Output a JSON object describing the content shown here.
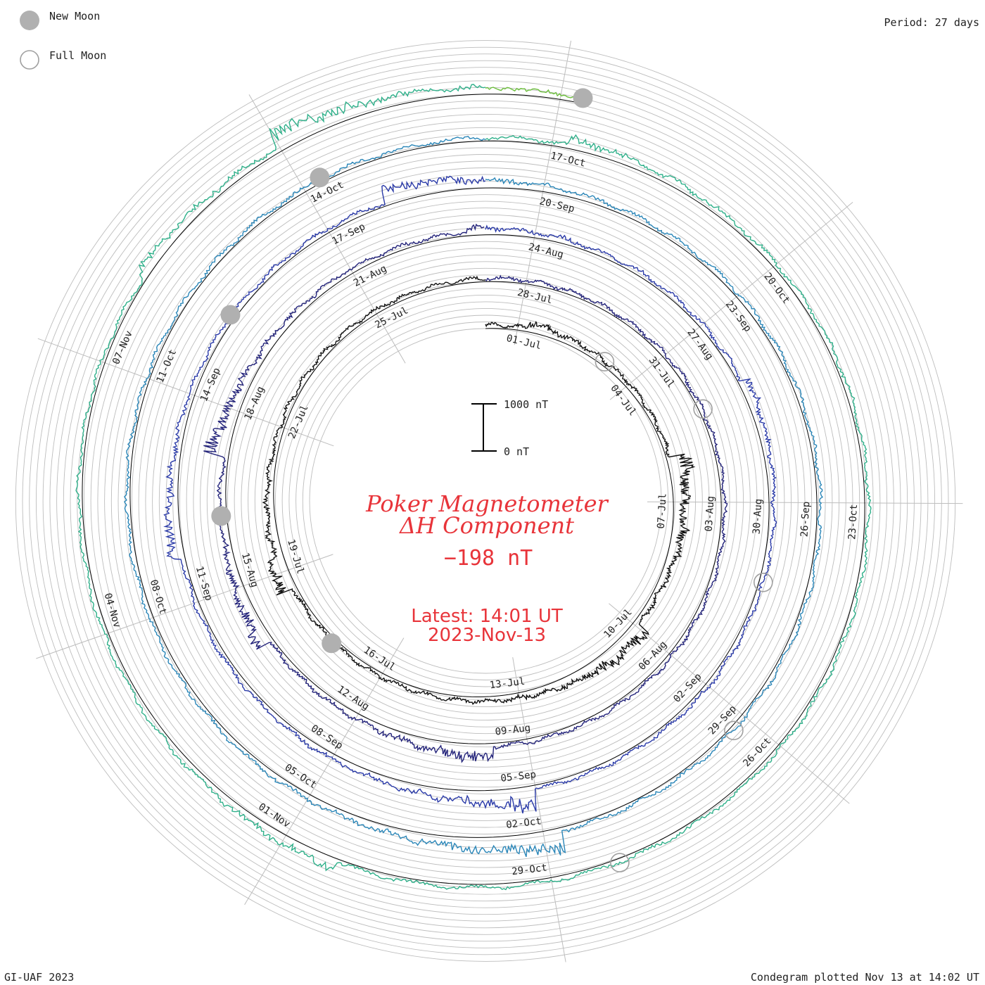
{
  "header": {
    "legend_new_moon": "New Moon",
    "legend_full_moon": "Full Moon",
    "period": "Period: 27 days"
  },
  "footer": {
    "left": "GI-UAF 2023",
    "right": "Condegram plotted Nov 13 at 14:02 UT"
  },
  "center": {
    "title_line1": "Poker Magnetometer",
    "title_line2": "ΔH Component",
    "current_value": "−198 nT",
    "latest_line1": "Latest: 14:01 UT",
    "latest_line2": "2023-Nov-13",
    "scale_top_label": "1000 nT",
    "scale_bottom_label": "0 nT"
  },
  "colors": {
    "accent": "#e8343a",
    "grid": "#bdbdbd",
    "moon_new": "#b0b0b0",
    "moon_full": "#a0a0a0",
    "turn_colors": [
      "#111111",
      "#23237a",
      "#2a3aa8",
      "#2a86b8",
      "#2fb08a",
      "#6cbf3c",
      "#b6b41e",
      "#c08a20",
      "#c0480e",
      "#c81a14"
    ]
  },
  "chart_data": {
    "type": "condegram",
    "period_days": 27,
    "start_date": "2023-06-30",
    "end_date": "2023-11-13",
    "units": "nT",
    "current_value_nT": -198,
    "date_tick_labels": [
      "01-Jul",
      "04-Jul",
      "07-Jul",
      "10-Jul",
      "13-Jul",
      "16-Jul",
      "19-Jul",
      "22-Jul",
      "25-Jul",
      "28-Jul",
      "31-Jul",
      "03-Aug",
      "06-Aug",
      "09-Aug",
      "12-Aug",
      "15-Aug",
      "18-Aug",
      "21-Aug",
      "24-Aug",
      "27-Aug",
      "30-Aug",
      "02-Sep",
      "05-Sep",
      "08-Sep",
      "11-Sep",
      "14-Sep",
      "17-Sep",
      "20-Sep",
      "23-Sep",
      "26-Sep",
      "29-Sep",
      "02-Oct",
      "05-Oct",
      "08-Oct",
      "11-Oct",
      "14-Oct",
      "17-Oct",
      "20-Oct",
      "23-Oct",
      "26-Oct",
      "29-Oct",
      "01-Nov",
      "04-Nov",
      "07-Nov"
    ],
    "new_moons": [
      "2023-07-17",
      "2023-08-16",
      "2023-09-15",
      "2023-10-14",
      "2023-11-13"
    ],
    "full_moons": [
      "2023-07-03",
      "2023-08-01",
      "2023-08-31",
      "2023-09-29",
      "2023-10-28"
    ]
  }
}
